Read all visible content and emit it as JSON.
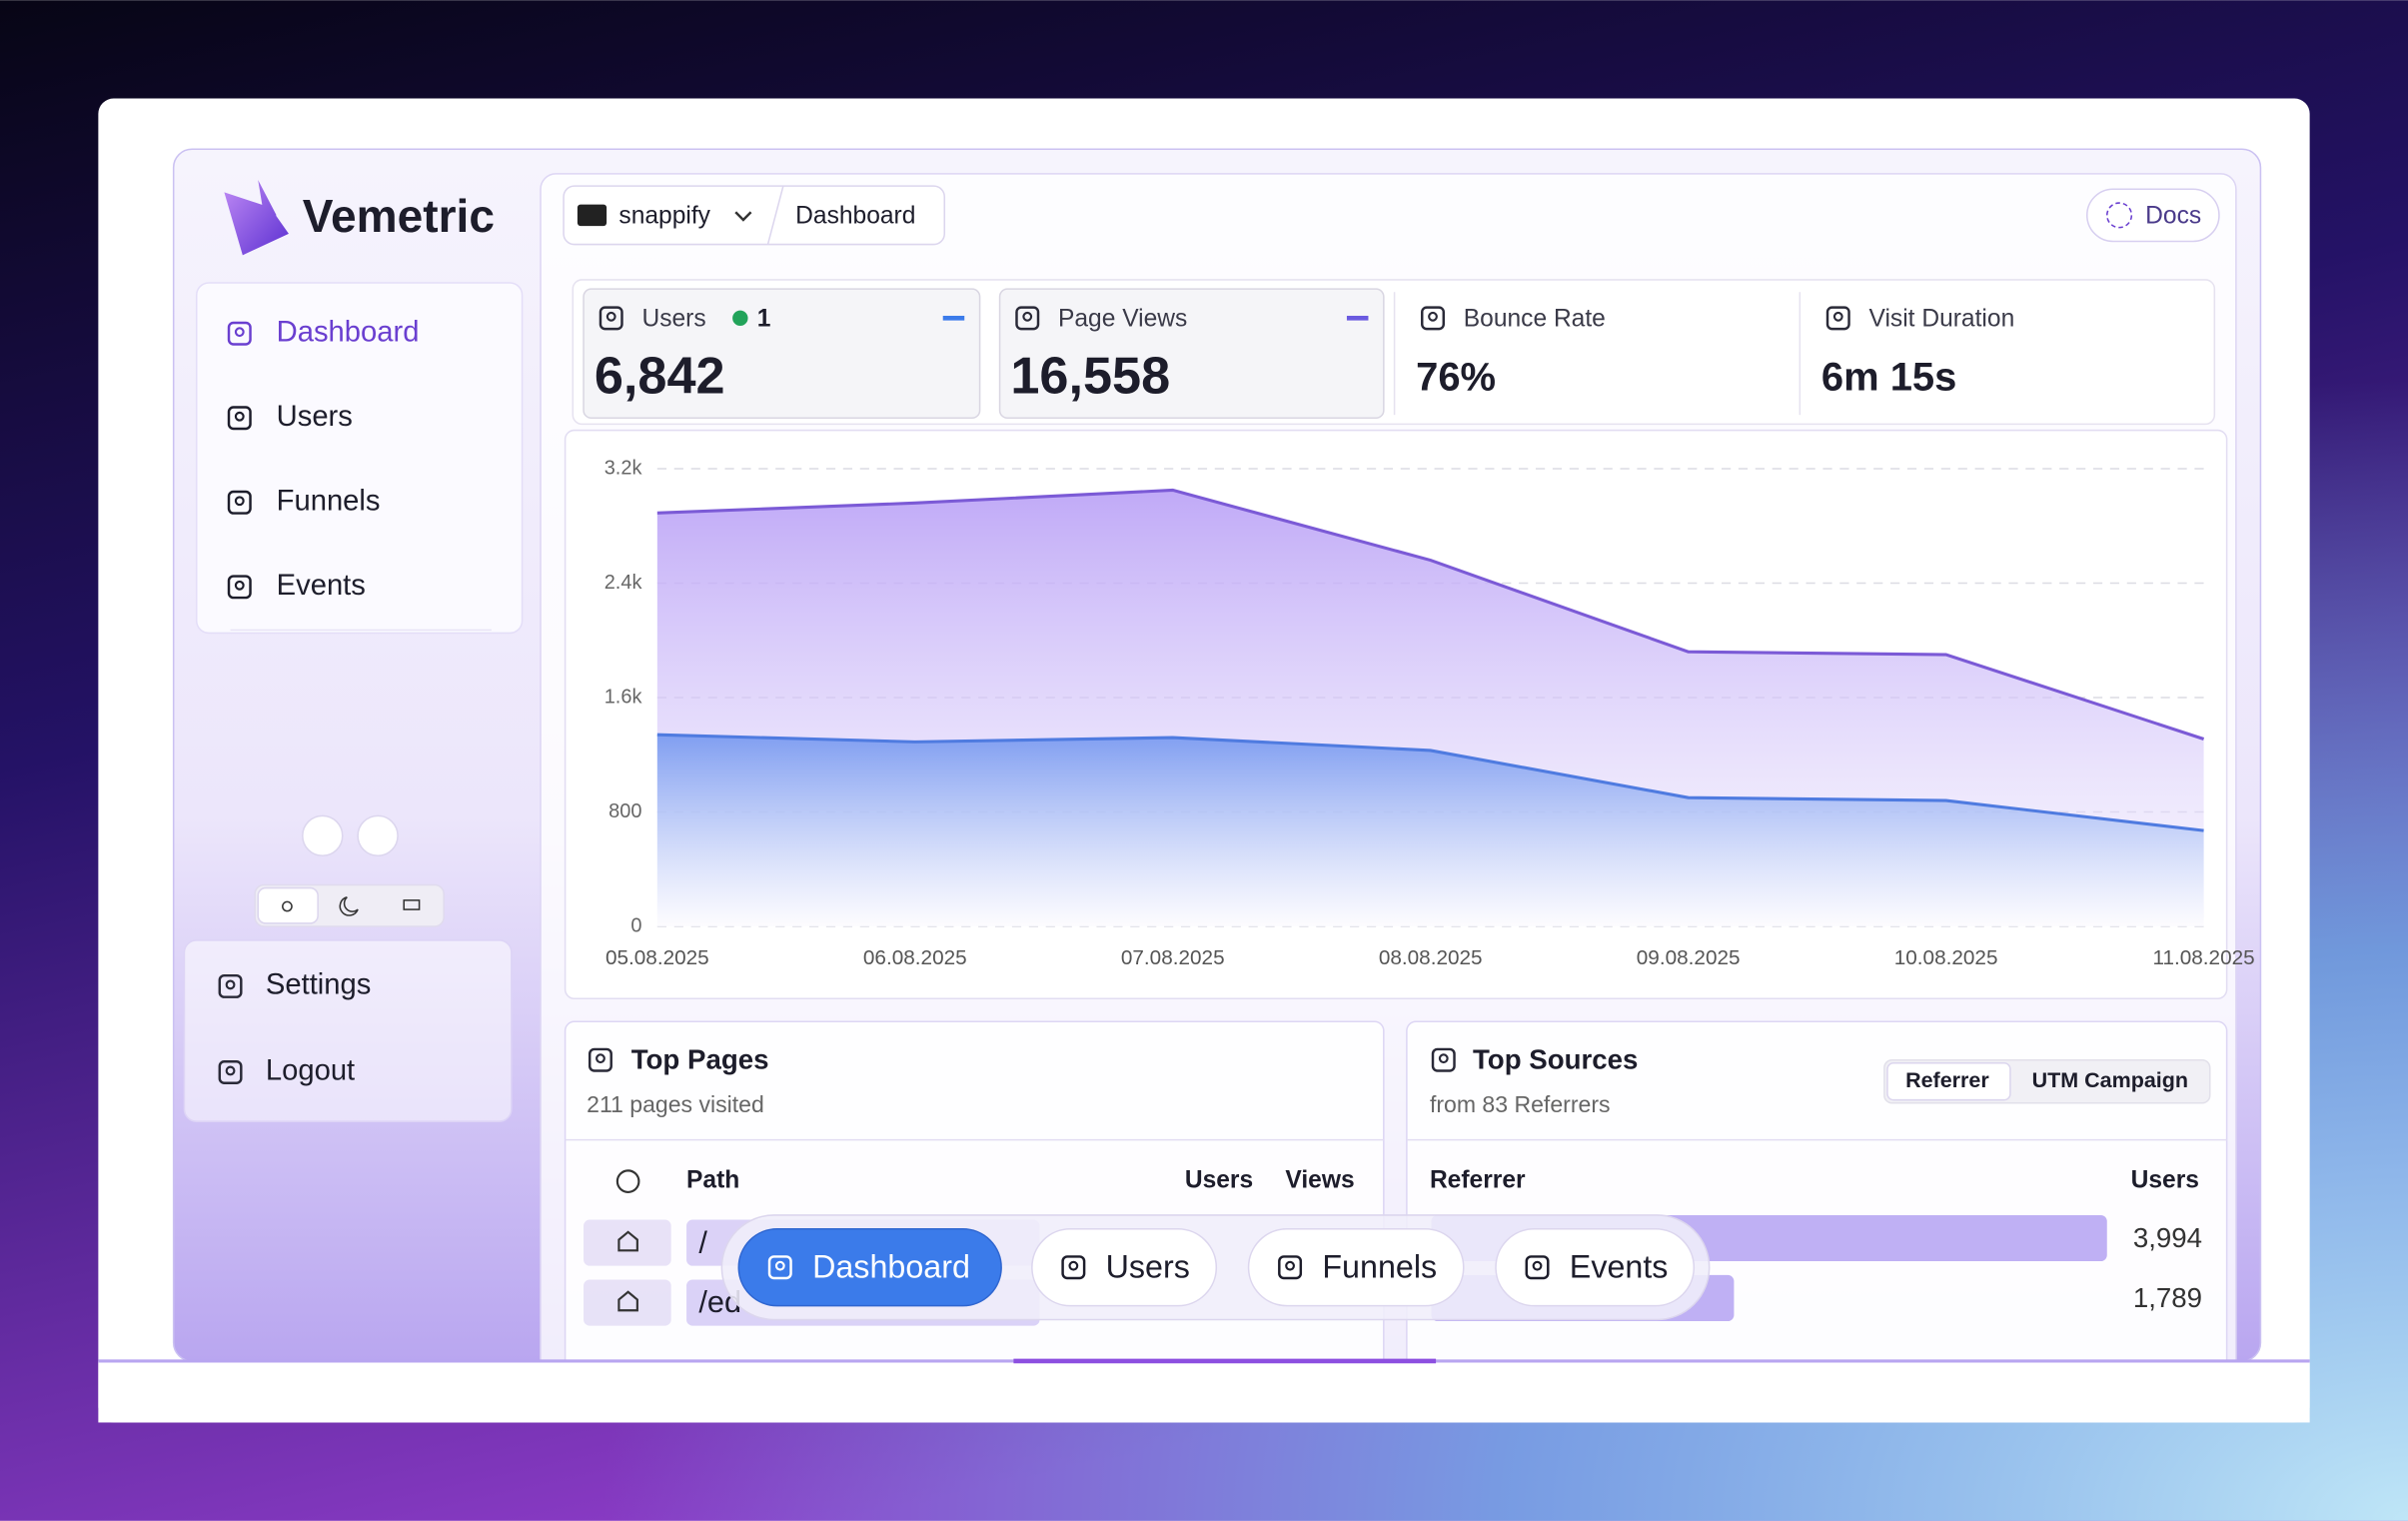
{
  "brand": "Vemetric",
  "nav": [
    "Dashboard",
    "Users",
    "Funnels",
    "Events"
  ],
  "bottom_nav": [
    "Settings",
    "Logout"
  ],
  "header": {
    "project": "snappify",
    "breadcrumb": "Dashboard",
    "docs": "Docs"
  },
  "stats": [
    {
      "label": "Users",
      "live": "1",
      "value": "6,842"
    },
    {
      "label": "Page Views",
      "value": "16,558"
    },
    {
      "label": "Bounce Rate",
      "value": "76%"
    },
    {
      "label": "Visit Duration",
      "value": "6m 15s"
    }
  ],
  "chart_data": {
    "type": "area",
    "x": [
      "05.08.2025",
      "06.08.2025",
      "07.08.2025",
      "08.08.2025",
      "09.08.2025",
      "10.08.2025",
      "11.08.2025"
    ],
    "series": [
      {
        "color": "#7b5ad6",
        "values": [
          2890,
          2960,
          3050,
          2560,
          1920,
          1900,
          1310
        ]
      },
      {
        "color": "#4f7be0",
        "values": [
          1340,
          1290,
          1320,
          1230,
          900,
          880,
          670
        ]
      }
    ],
    "ylim": [
      0,
      3200
    ],
    "yticks": [
      0,
      800,
      {
        "value": 1600,
        "label": "1.6k"
      },
      {
        "value": 2400,
        "label": "2.4k"
      },
      {
        "value": 3200,
        "label": "3.2k"
      }
    ],
    "grid": true
  },
  "top_pages": {
    "title": "Top Pages",
    "subtitle": "211 pages visited",
    "columns": [
      "Path",
      "Users",
      "Views"
    ],
    "rows": [
      {
        "path": "/"
      },
      {
        "path": "/ed"
      }
    ]
  },
  "top_sources": {
    "title": "Top Sources",
    "subtitle": "from 83 Referrers",
    "tabs": [
      "Referrer",
      "UTM Campaign"
    ],
    "columns": [
      "Referrer",
      "Users"
    ],
    "values": [
      3994,
      1789
    ],
    "value_labels": [
      "3,994",
      "1,789"
    ]
  },
  "floating_nav": [
    "Dashboard",
    "Users",
    "Funnels",
    "Events"
  ]
}
